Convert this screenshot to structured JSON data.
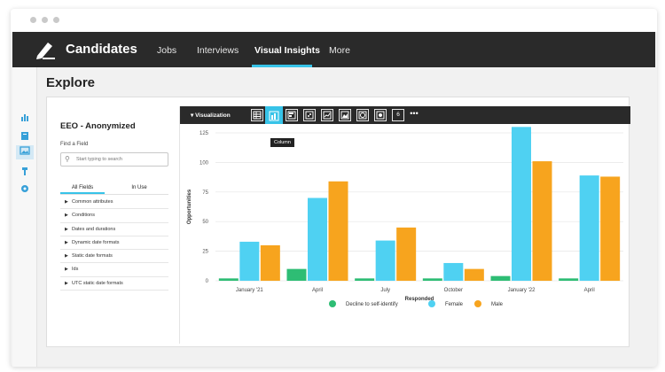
{
  "window": {
    "dots": [
      "",
      "",
      ""
    ]
  },
  "topnav": {
    "brand": "Candidates",
    "items": [
      "Jobs",
      "Interviews",
      "Visual Insights",
      "More"
    ],
    "active": "Visual Insights",
    "accent": "#37c3e8"
  },
  "leftrail": {
    "icons": [
      "bar-chart-icon",
      "book-icon",
      "image-icon",
      "hammer-icon",
      "gear-icon"
    ],
    "selected": "image-icon"
  },
  "page": {
    "title": "Explore"
  },
  "field_panel": {
    "title": "EEO - Anonymized",
    "find_label": "Find a Field",
    "search_placeholder": "Start typing to search",
    "tabs": [
      "All Fields",
      "In Use"
    ],
    "items": [
      "Common attributes",
      "Conditions",
      "Dates and durations",
      "Dynamic date formats",
      "Static date formats",
      "Ids",
      "UTC static date formats"
    ]
  },
  "viz": {
    "label": "Visualization",
    "buttons": [
      "table-icon",
      "column-icon",
      "bar-icon",
      "scatter-icon",
      "line-icon",
      "area-icon",
      "pie-icon",
      "map-icon",
      "single-value-icon",
      "more-icon"
    ],
    "single_value_text": "6",
    "more_text": "•••",
    "active": "column-icon",
    "tooltip": "Column"
  },
  "chart_data": {
    "type": "bar",
    "categories": [
      "January '21",
      "April",
      "July",
      "October",
      "January '22",
      "April"
    ],
    "series": [
      {
        "name": "Decline to self-identify",
        "color": "#2ebd74",
        "values": [
          2,
          10,
          2,
          2,
          4,
          2
        ]
      },
      {
        "name": "Female",
        "color": "#4fd1f2",
        "values": [
          33,
          70,
          34,
          15,
          130,
          89
        ]
      },
      {
        "name": "Male",
        "color": "#f7a41e",
        "values": [
          30,
          84,
          45,
          10,
          101,
          88
        ]
      }
    ],
    "xlabel": "Responded",
    "ylabel": "Opportunities",
    "ylim": [
      0,
      125
    ],
    "yticks": [
      0,
      25,
      50,
      75,
      100,
      125
    ],
    "grid": true,
    "legend": "bottom"
  }
}
